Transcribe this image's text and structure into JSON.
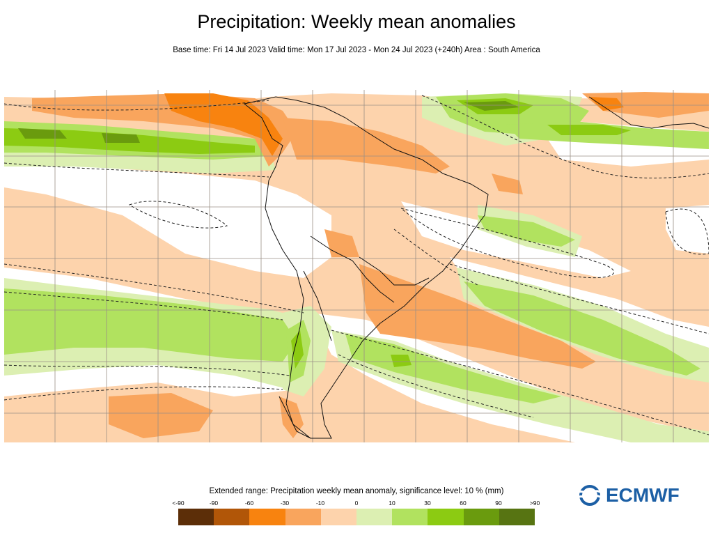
{
  "title": "Precipitation: Weekly mean anomalies",
  "subtitle": "Base time: Fri 14 Jul 2023 Valid time: Mon 17 Jul 2023 - Mon 24 Jul 2023 (+240h) Area : South America",
  "legend": {
    "title": "Extended range: Precipitation weekly mean anomaly, significance level: 10 % (mm)",
    "labels": [
      "<-90",
      "-90",
      "-60",
      "-30",
      "-10",
      "0",
      "10",
      "30",
      "60",
      "90",
      ">90"
    ],
    "colors": [
      "#5c2e08",
      "#b15608",
      "#f8830f",
      "#f9a55d",
      "#fdd3ac",
      "#ffffff",
      "#dcefb2",
      "#b1e25f",
      "#8ccb12",
      "#6a9b0e",
      "#577412"
    ]
  },
  "logo": {
    "text": "ECMWF",
    "icon": "ecmwf-logo-icon",
    "color": "#1c5fa5"
  }
}
